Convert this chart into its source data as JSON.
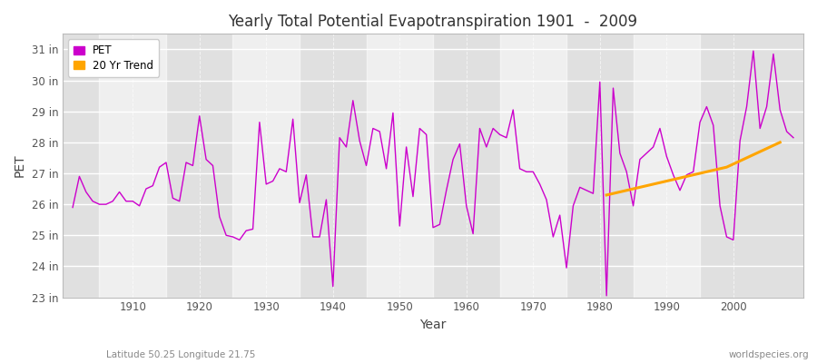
{
  "title": "Yearly Total Potential Evapotranspiration 1901  -  2009",
  "xlabel": "Year",
  "ylabel": "PET",
  "subtitle_left": "Latitude 50.25 Longitude 21.75",
  "subtitle_right": "worldspecies.org",
  "pet_color": "#cc00cc",
  "trend_color": "#FFA500",
  "bg_color": "#ffffff",
  "plot_bg_color": "#e0e0e0",
  "years": [
    1901,
    1902,
    1903,
    1904,
    1905,
    1906,
    1907,
    1908,
    1909,
    1910,
    1911,
    1912,
    1913,
    1914,
    1915,
    1916,
    1917,
    1918,
    1919,
    1920,
    1921,
    1922,
    1923,
    1924,
    1925,
    1926,
    1927,
    1928,
    1929,
    1930,
    1931,
    1932,
    1933,
    1934,
    1935,
    1936,
    1937,
    1938,
    1939,
    1940,
    1941,
    1942,
    1943,
    1944,
    1945,
    1946,
    1947,
    1948,
    1949,
    1950,
    1951,
    1952,
    1953,
    1954,
    1955,
    1956,
    1957,
    1958,
    1959,
    1960,
    1961,
    1962,
    1963,
    1964,
    1965,
    1966,
    1967,
    1968,
    1969,
    1970,
    1971,
    1972,
    1973,
    1974,
    1975,
    1976,
    1977,
    1978,
    1979,
    1980,
    1981,
    1982,
    1983,
    1984,
    1985,
    1986,
    1987,
    1988,
    1989,
    1990,
    1991,
    1992,
    1993,
    1994,
    1995,
    1996,
    1997,
    1998,
    1999,
    2000,
    2001,
    2002,
    2003,
    2004,
    2005,
    2006,
    2007,
    2008,
    2009
  ],
  "pet_values": [
    25.9,
    26.9,
    26.4,
    26.1,
    26.0,
    26.0,
    26.1,
    26.4,
    26.1,
    26.1,
    25.95,
    26.5,
    26.6,
    27.2,
    27.35,
    26.2,
    26.1,
    27.35,
    27.25,
    28.85,
    27.45,
    27.25,
    25.6,
    25.0,
    24.95,
    24.85,
    25.15,
    25.2,
    28.65,
    26.65,
    26.75,
    27.15,
    27.05,
    28.75,
    26.05,
    26.95,
    24.95,
    24.95,
    26.15,
    23.35,
    28.15,
    27.85,
    29.35,
    28.05,
    27.25,
    28.45,
    28.35,
    27.15,
    28.95,
    25.3,
    27.85,
    26.25,
    28.45,
    28.25,
    25.25,
    25.35,
    26.45,
    27.45,
    27.95,
    25.95,
    25.05,
    28.45,
    27.85,
    28.45,
    28.25,
    28.15,
    29.05,
    27.15,
    27.05,
    27.05,
    26.65,
    26.15,
    24.95,
    25.65,
    23.95,
    25.95,
    26.55,
    26.45,
    26.35,
    29.95,
    23.05,
    29.75,
    27.65,
    27.05,
    25.95,
    27.45,
    27.65,
    27.85,
    28.45,
    27.55,
    26.95,
    26.45,
    26.95,
    27.05,
    28.65,
    29.15,
    28.55,
    25.95,
    24.95,
    24.85,
    28.05,
    29.15,
    30.95,
    28.45,
    29.15,
    30.85,
    29.05,
    28.35,
    28.15
  ],
  "trend_years": [
    1981,
    1982,
    1983,
    1984,
    1985,
    1986,
    1987,
    1988,
    1989,
    1990,
    1991,
    1992,
    1993,
    1994,
    1995,
    1996,
    1997,
    1998,
    1999,
    2000,
    2001,
    2002,
    2003,
    2004,
    2005,
    2006,
    2007
  ],
  "trend_values": [
    26.3,
    26.35,
    26.4,
    26.45,
    26.5,
    26.55,
    26.6,
    26.65,
    26.7,
    26.75,
    26.8,
    26.85,
    26.9,
    26.95,
    27.0,
    27.05,
    27.1,
    27.15,
    27.2,
    27.3,
    27.4,
    27.5,
    27.6,
    27.7,
    27.8,
    27.9,
    28.0
  ],
  "ylim": [
    23.0,
    31.5
  ],
  "yticks": [
    23,
    24,
    25,
    26,
    27,
    28,
    29,
    30,
    31
  ],
  "ytick_labels": [
    "23 in",
    "24 in",
    "25 in",
    "26 in",
    "27 in",
    "28 in",
    "29 in",
    "30 in",
    "31 in"
  ],
  "xlim": [
    1899.5,
    2010.5
  ],
  "xticks": [
    1910,
    1920,
    1930,
    1940,
    1950,
    1960,
    1970,
    1980,
    1990,
    2000
  ]
}
